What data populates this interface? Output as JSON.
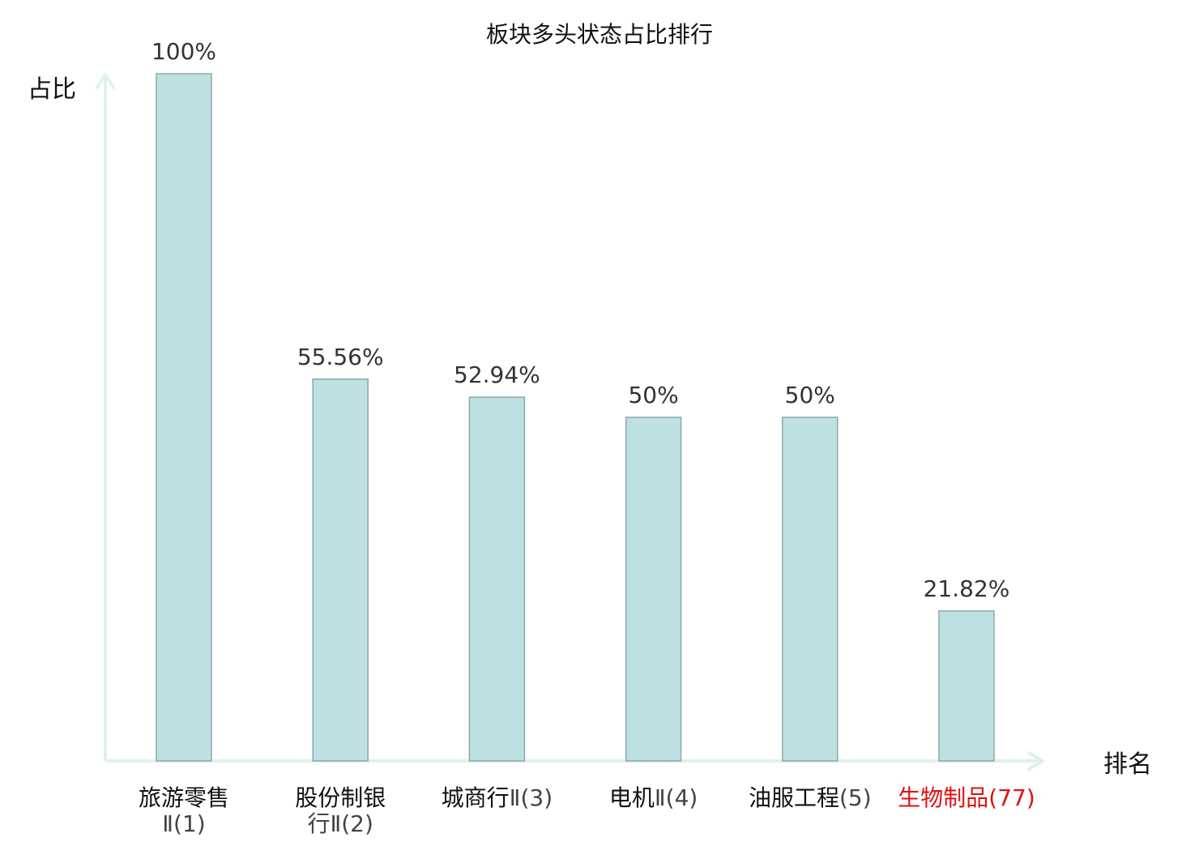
{
  "chart_data": {
    "type": "bar",
    "title": "板块多头状态占比排行",
    "ylabel": "占比",
    "xlabel": "排名",
    "ylim": [
      0,
      100
    ],
    "grid": false,
    "categories": [
      {
        "name_lines": [
          "旅游零售"
        ],
        "rank_line": "Ⅱ(1)",
        "highlight": false
      },
      {
        "name_lines": [
          "股份制银"
        ],
        "rank_line": "行Ⅱ(2)",
        "highlight": false
      },
      {
        "name_lines": [
          "城商行"
        ],
        "rank_line": "Ⅱ(3)",
        "inline": true,
        "highlight": false
      },
      {
        "name_lines": [
          "电机"
        ],
        "rank_line": "Ⅱ(4)",
        "inline": true,
        "highlight": false
      },
      {
        "name_lines": [
          "油服工程"
        ],
        "rank_line": "(5)",
        "inline": true,
        "highlight": false
      },
      {
        "name_lines": [
          "生物制品"
        ],
        "rank_line": "(77)",
        "inline": true,
        "highlight": true
      }
    ],
    "values": [
      100,
      55.56,
      52.94,
      50,
      50,
      21.82
    ],
    "data_labels": [
      "100%",
      "55.56%",
      "52.94%",
      "50%",
      "50%",
      "21.82%"
    ],
    "colors": {
      "bar_fill": "#bde0e3",
      "bar_stroke": "#8ca8ab",
      "axis": "#dff1ef",
      "text": "#111111",
      "label_text": "#333333",
      "rank_text": "#444444",
      "highlight": "#dd1111"
    }
  }
}
